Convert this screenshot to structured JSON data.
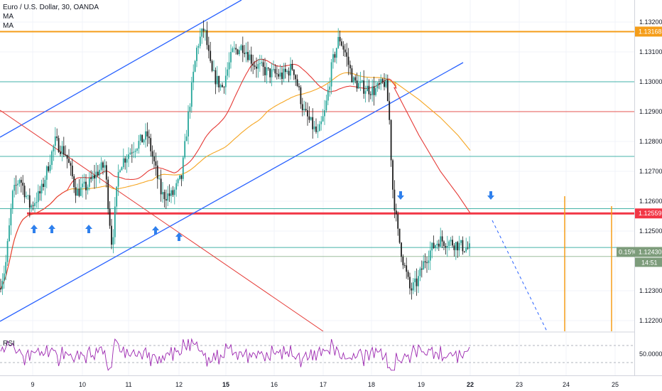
{
  "legend": {
    "title": "Euro / U.S. Dollar, 30, OANDA",
    "ma1": "MA",
    "ma2": "MA"
  },
  "rsi_label": "RSI",
  "colors": {
    "up": "#26a69a",
    "down": "#1e1e1e",
    "ma_red": "#e53935",
    "ma_orange": "#f5a623",
    "channel_blue": "#2962ff",
    "support_red": "#f23645",
    "orange_level": "#f59d18",
    "teal_level": "#26a69a",
    "green_level": "#8bb38b",
    "rsi": "#9c27b0",
    "arrow_blue": "#2f80ed",
    "price_badge": "#7d9c7b"
  },
  "chart_data": {
    "type": "candlestick",
    "symbol": "EUR/USD",
    "timeframe": "30",
    "source": "OANDA",
    "ylim": [
      1.1215,
      1.1327
    ],
    "x_ticks": [
      "9",
      "10",
      "11",
      "12",
      "15",
      "16",
      "17",
      "18",
      "19",
      "22",
      "23",
      "24",
      "25"
    ],
    "y_ticks": [
      "1.13200",
      "1.13100",
      "1.13000",
      "1.12900",
      "1.12800",
      "1.12700",
      "1.12600",
      "1.12500",
      "1.12300",
      "1.12200"
    ],
    "horizontal_levels": [
      {
        "value": 1.13168,
        "label": "1.13168",
        "color": "orange"
      },
      {
        "value": 1.13,
        "color": "teal"
      },
      {
        "value": 1.129,
        "color": "red"
      },
      {
        "value": 1.1275,
        "color": "teal"
      },
      {
        "value": 1.12575,
        "color": "teal"
      },
      {
        "value": 1.12559,
        "label": "1.12559",
        "color": "red",
        "thick": true
      },
      {
        "value": 1.12445,
        "color": "teal"
      },
      {
        "value": 1.12415,
        "color": "green"
      }
    ],
    "current_price": {
      "value": 1.1243,
      "label": "1.12430",
      "change": "0.15%",
      "countdown": "14:51"
    },
    "rsi": {
      "label": "RSI",
      "level": "50.0000",
      "range": [
        0,
        100
      ]
    }
  }
}
